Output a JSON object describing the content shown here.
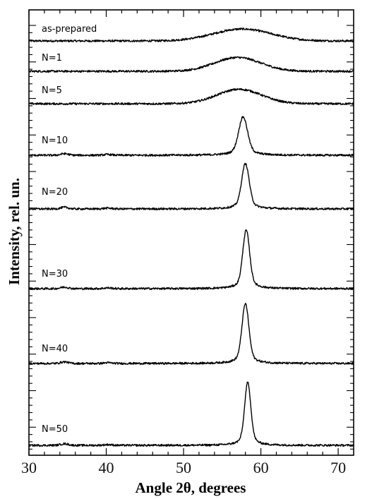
{
  "chart_data": {
    "type": "line",
    "xlabel": "Angle 2θ, degrees",
    "ylabel": "Intensity, rel. un.",
    "xlim": [
      30,
      72
    ],
    "x_ticks": [
      30,
      40,
      50,
      60,
      70
    ],
    "grid": false,
    "legend": "none",
    "series_stacked_vertically": true,
    "series": [
      {
        "name": "as-prepared",
        "baseline": 0.5,
        "peak_center": 57.6,
        "peak_height": 1.9,
        "peak_width": 8.8,
        "peak_shape": "broad"
      },
      {
        "name": "N=1",
        "baseline": 0.5,
        "peak_center": 57.0,
        "peak_height": 2.2,
        "peak_width": 7.0,
        "peak_shape": "broad"
      },
      {
        "name": "N=5",
        "baseline": 0.5,
        "peak_center": 57.2,
        "peak_height": 2.3,
        "peak_width": 6.8,
        "peak_shape": "broad"
      },
      {
        "name": "N=10",
        "baseline": 0.6,
        "peak_center": 57.7,
        "peak_height": 6.1,
        "peak_width": 1.3,
        "peak_shape": "sharp"
      },
      {
        "name": "N=20",
        "baseline": 0.6,
        "peak_center": 58.0,
        "peak_height": 7.2,
        "peak_width": 1.1,
        "peak_shape": "sharp"
      },
      {
        "name": "N=30",
        "baseline": 0.7,
        "peak_center": 58.1,
        "peak_height": 9.3,
        "peak_width": 1.0,
        "peak_shape": "sharp"
      },
      {
        "name": "N=40",
        "baseline": 0.7,
        "peak_center": 58.0,
        "peak_height": 9.5,
        "peak_width": 1.0,
        "peak_shape": "sharp"
      },
      {
        "name": "N=50",
        "baseline": 0.6,
        "peak_center": 58.3,
        "peak_height": 10.0,
        "peak_width": 0.9,
        "peak_shape": "sharp"
      }
    ]
  }
}
